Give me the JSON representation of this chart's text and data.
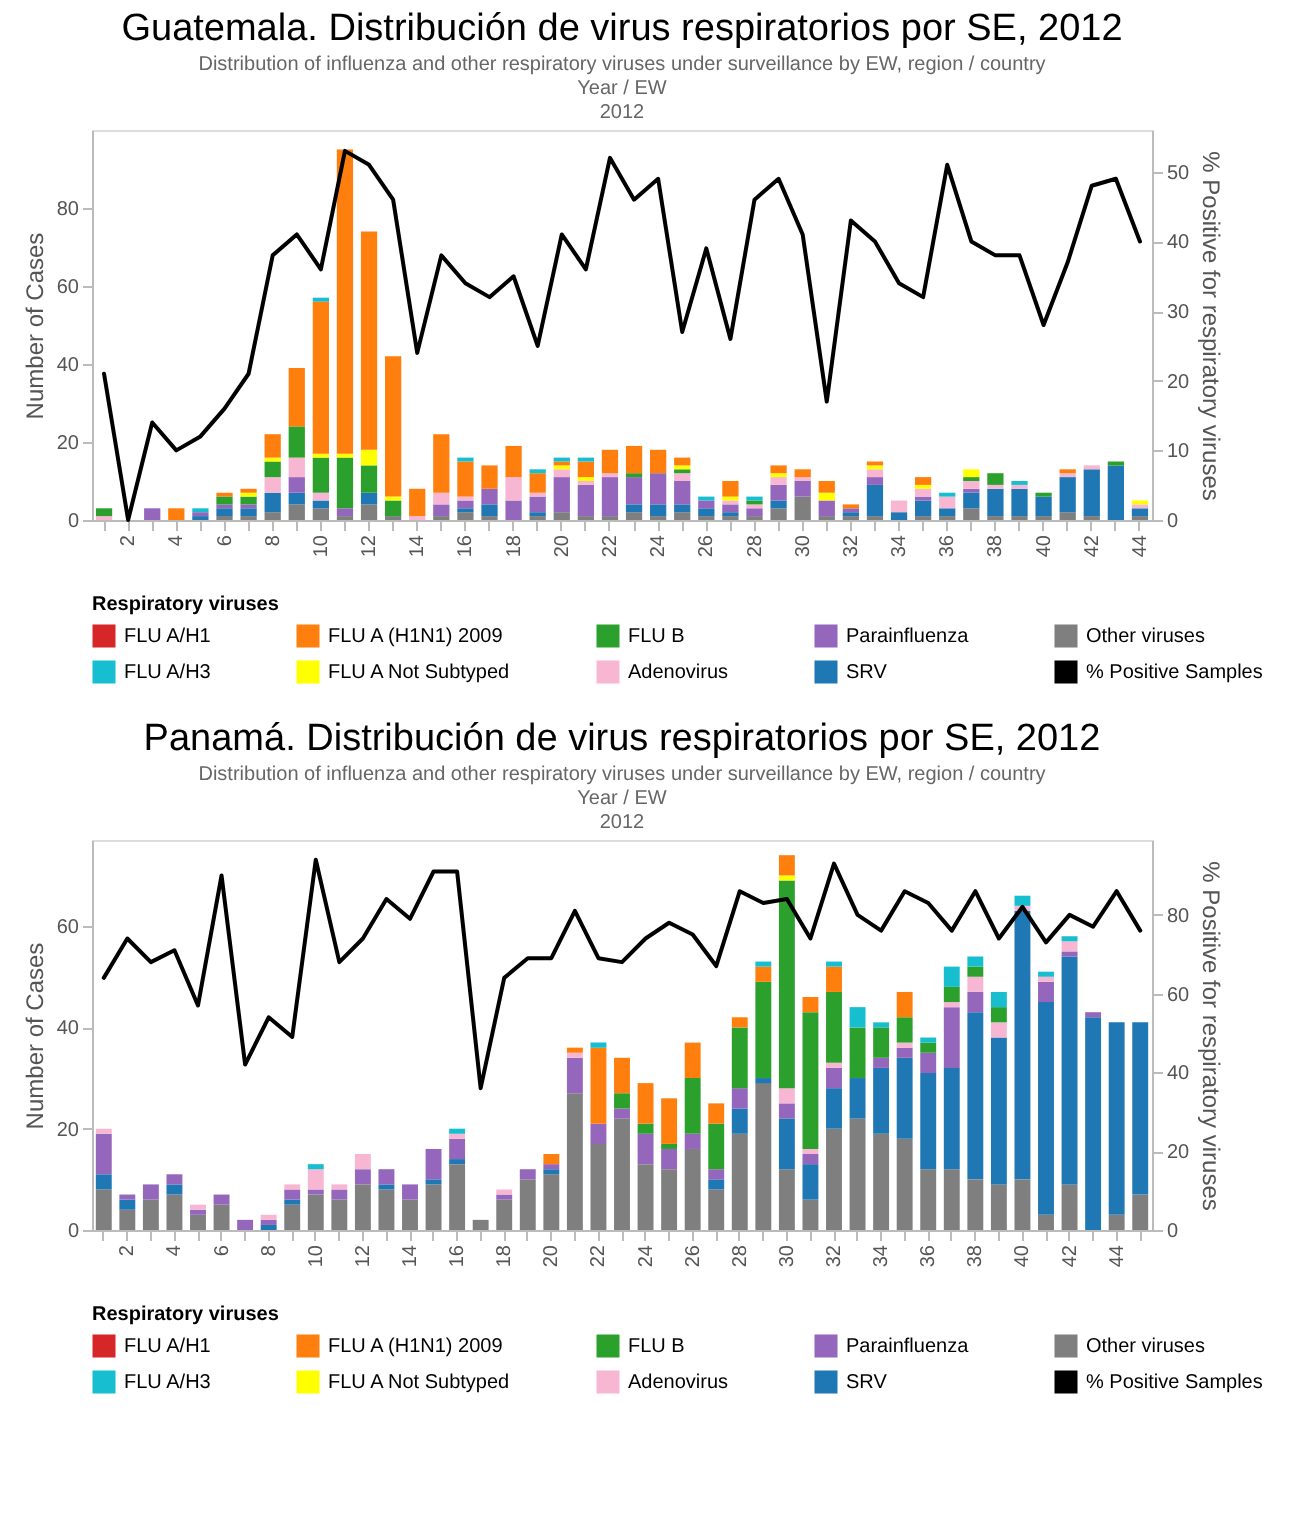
{
  "chart_data": [
    {
      "type": "bar",
      "title": "Guatemala. Distribución de virus respiratorios por SE, 2012",
      "subtitle": "Distribution of influenza and other respiratory viruses under surveillance by EW, region / country",
      "annotations": [
        "Year / EW",
        "2012"
      ],
      "categories": [
        null,
        "2",
        null,
        "4",
        null,
        "6",
        null,
        "8",
        null,
        "10",
        null,
        "12",
        null,
        "14",
        null,
        "16",
        null,
        "18",
        null,
        "20",
        null,
        "22",
        null,
        "24",
        null,
        "26",
        null,
        "28",
        null,
        "30",
        null,
        "32",
        null,
        "34",
        null,
        "36",
        null,
        "38",
        null,
        "40",
        null,
        "42",
        null,
        "44"
      ],
      "ylabel": "Number of Cases",
      "y2label": "% Positive for respiratory viruses",
      "legend_title": "Respiratory viruses",
      "legend": "bottom",
      "stacked": true,
      "ylim": [
        0,
        100
      ],
      "yticks": [
        0,
        20,
        40,
        60,
        80
      ],
      "y2lim": [
        0,
        56
      ],
      "y2ticks": [
        0,
        10,
        20,
        30,
        40,
        50
      ],
      "series": [
        {
          "name": "Other viruses",
          "color": "#7f7f7f",
          "values": [
            0,
            0,
            0,
            0,
            0,
            1,
            1,
            2,
            4,
            3,
            1,
            4,
            1,
            0,
            1,
            2,
            1,
            0,
            1,
            2,
            1,
            1,
            2,
            1,
            2,
            1,
            1,
            1,
            3,
            6,
            1,
            1,
            1,
            0,
            1,
            1,
            3,
            1,
            1,
            1,
            2,
            1,
            0,
            1
          ]
        },
        {
          "name": "SRV",
          "color": "#1f77b4",
          "values": [
            0,
            0,
            0,
            0,
            1,
            2,
            2,
            5,
            3,
            2,
            0,
            3,
            0,
            0,
            0,
            1,
            3,
            0,
            1,
            0,
            0,
            0,
            2,
            3,
            2,
            2,
            1,
            0,
            2,
            0,
            0,
            1,
            8,
            2,
            4,
            2,
            4,
            7,
            7,
            5,
            9,
            12,
            14,
            2
          ]
        },
        {
          "name": "Parainfluenza",
          "color": "#9467bd",
          "values": [
            0,
            0,
            3,
            0,
            1,
            1,
            1,
            0,
            4,
            0,
            2,
            0,
            0,
            0,
            3,
            2,
            4,
            5,
            4,
            9,
            8,
            10,
            7,
            8,
            6,
            2,
            2,
            2,
            4,
            4,
            4,
            1,
            2,
            0,
            1,
            0,
            1,
            0,
            0,
            0,
            0,
            0,
            0,
            0
          ]
        },
        {
          "name": "Adenovirus",
          "color": "#f7b6d2",
          "values": [
            1,
            0,
            0,
            0,
            0,
            0,
            0,
            4,
            5,
            2,
            0,
            0,
            0,
            1,
            3,
            1,
            0,
            6,
            1,
            2,
            1,
            1,
            0,
            0,
            2,
            0,
            1,
            1,
            2,
            1,
            0,
            0,
            2,
            3,
            2,
            3,
            2,
            1,
            1,
            0,
            1,
            1,
            0,
            1
          ]
        },
        {
          "name": "FLU B",
          "color": "#2ca02c",
          "values": [
            2,
            0,
            0,
            0,
            0,
            2,
            2,
            4,
            8,
            9,
            13,
            7,
            4,
            0,
            0,
            0,
            0,
            0,
            0,
            0,
            0,
            0,
            1,
            0,
            1,
            0,
            0,
            1,
            0,
            0,
            0,
            0,
            0,
            0,
            0,
            0,
            1,
            3,
            0,
            1,
            0,
            0,
            1,
            0
          ]
        },
        {
          "name": "FLU A Not Subtyped",
          "color": "#ffff00",
          "values": [
            0,
            0,
            0,
            0,
            0,
            0,
            1,
            1,
            0,
            1,
            1,
            4,
            1,
            0,
            0,
            0,
            0,
            0,
            0,
            1,
            1,
            0,
            0,
            0,
            1,
            0,
            1,
            0,
            1,
            0,
            2,
            0,
            1,
            0,
            1,
            0,
            2,
            0,
            0,
            0,
            0,
            0,
            0,
            1
          ]
        },
        {
          "name": "FLU A (H1N1) 2009",
          "color": "#ff7f0e",
          "values": [
            0,
            0,
            0,
            3,
            0,
            1,
            1,
            6,
            15,
            39,
            78,
            56,
            36,
            7,
            15,
            9,
            6,
            8,
            5,
            1,
            4,
            6,
            7,
            6,
            2,
            0,
            4,
            0,
            2,
            2,
            3,
            1,
            1,
            0,
            2,
            0,
            0,
            0,
            0,
            0,
            1,
            0,
            0,
            0
          ]
        },
        {
          "name": "FLU A/H3",
          "color": "#17becf",
          "values": [
            0,
            0,
            0,
            0,
            1,
            0,
            0,
            0,
            0,
            1,
            0,
            0,
            0,
            0,
            0,
            1,
            0,
            0,
            1,
            1,
            1,
            0,
            0,
            0,
            0,
            1,
            0,
            1,
            0,
            0,
            0,
            0,
            0,
            0,
            0,
            1,
            0,
            0,
            1,
            0,
            0,
            0,
            0,
            0
          ]
        },
        {
          "name": "FLU A/H1",
          "color": "#d62728",
          "values": [
            0,
            0,
            0,
            0,
            0,
            0,
            0,
            0,
            0,
            0,
            0,
            0,
            0,
            0,
            0,
            0,
            0,
            0,
            0,
            0,
            0,
            0,
            0,
            0,
            0,
            0,
            0,
            0,
            0,
            0,
            0,
            0,
            0,
            0,
            0,
            0,
            0,
            0,
            0,
            0,
            0,
            0,
            0,
            0
          ]
        },
        {
          "name": "% Positive Samples",
          "color": "#000000",
          "type": "line",
          "axis": "y2",
          "values": [
            21,
            0,
            14,
            10,
            12,
            16,
            21,
            38,
            41,
            36,
            53,
            51,
            46,
            24,
            38,
            34,
            32,
            35,
            25,
            41,
            36,
            52,
            46,
            49,
            27,
            39,
            26,
            46,
            49,
            41,
            17,
            43,
            40,
            34,
            32,
            51,
            40,
            38,
            38,
            28,
            37,
            48,
            49,
            40
          ]
        }
      ]
    },
    {
      "type": "bar",
      "title": "Panamá. Distribución de virus respiratorios por SE, 2012",
      "subtitle": "Distribution of influenza and other respiratory viruses under surveillance by EW, region / country",
      "annotations": [
        "Year / EW",
        "2012"
      ],
      "categories": [
        null,
        "2",
        null,
        "4",
        null,
        "6",
        null,
        "8",
        null,
        "10",
        null,
        "12",
        null,
        "14",
        null,
        "16",
        null,
        "18",
        null,
        "20",
        null,
        "22",
        null,
        "24",
        null,
        "26",
        null,
        "28",
        null,
        "30",
        null,
        "32",
        null,
        "34",
        null,
        "36",
        null,
        "38",
        null,
        "40",
        null,
        "42",
        null,
        "44",
        null
      ],
      "ylabel": "Number of Cases",
      "y2label": "% Positive for respiratory viruses",
      "legend_title": "Respiratory viruses",
      "legend": "bottom",
      "stacked": true,
      "ylim": [
        0,
        77
      ],
      "yticks": [
        0,
        20,
        40,
        60
      ],
      "y2lim": [
        0,
        99
      ],
      "y2ticks": [
        0,
        20,
        40,
        60,
        80
      ],
      "series": [
        {
          "name": "Other viruses",
          "color": "#7f7f7f",
          "values": [
            8,
            4,
            6,
            7,
            3,
            5,
            0,
            0,
            5,
            7,
            6,
            9,
            8,
            6,
            9,
            13,
            2,
            6,
            10,
            11,
            27,
            17,
            22,
            13,
            12,
            16,
            8,
            19,
            29,
            12,
            6,
            20,
            22,
            19,
            18,
            12,
            12,
            10,
            9,
            10,
            3,
            9,
            0,
            3,
            7
          ]
        },
        {
          "name": "SRV",
          "color": "#1f77b4",
          "values": [
            3,
            2,
            0,
            2,
            0,
            0,
            0,
            1,
            1,
            0,
            0,
            0,
            1,
            0,
            1,
            1,
            0,
            0,
            0,
            1,
            0,
            0,
            0,
            0,
            0,
            0,
            2,
            5,
            1,
            10,
            7,
            8,
            8,
            13,
            16,
            19,
            20,
            33,
            29,
            53,
            42,
            45,
            42,
            38,
            34
          ]
        },
        {
          "name": "Parainfluenza",
          "color": "#9467bd",
          "values": [
            8,
            1,
            3,
            2,
            1,
            2,
            2,
            1,
            2,
            1,
            2,
            3,
            3,
            3,
            6,
            4,
            0,
            1,
            2,
            1,
            7,
            4,
            2,
            6,
            4,
            3,
            2,
            4,
            0,
            3,
            2,
            4,
            0,
            2,
            2,
            4,
            12,
            4,
            0,
            0,
            4,
            1,
            1,
            0,
            0
          ]
        },
        {
          "name": "Adenovirus",
          "color": "#f7b6d2",
          "values": [
            1,
            0,
            0,
            0,
            1,
            0,
            0,
            1,
            1,
            4,
            1,
            3,
            0,
            0,
            0,
            1,
            0,
            1,
            0,
            0,
            1,
            0,
            0,
            0,
            0,
            0,
            0,
            0,
            0,
            3,
            1,
            1,
            0,
            0,
            1,
            0,
            1,
            3,
            3,
            1,
            1,
            2,
            0,
            0,
            0
          ]
        },
        {
          "name": "FLU B",
          "color": "#2ca02c",
          "values": [
            0,
            0,
            0,
            0,
            0,
            0,
            0,
            0,
            0,
            0,
            0,
            0,
            0,
            0,
            0,
            0,
            0,
            0,
            0,
            0,
            0,
            0,
            3,
            2,
            1,
            11,
            9,
            12,
            19,
            41,
            27,
            14,
            10,
            6,
            5,
            2,
            3,
            2,
            3,
            0,
            0,
            0,
            0,
            0,
            0
          ]
        },
        {
          "name": "FLU A Not Subtyped",
          "color": "#ffff00",
          "values": [
            0,
            0,
            0,
            0,
            0,
            0,
            0,
            0,
            0,
            0,
            0,
            0,
            0,
            0,
            0,
            0,
            0,
            0,
            0,
            0,
            0,
            0,
            0,
            0,
            0,
            0,
            0,
            0,
            0,
            1,
            0,
            0,
            0,
            0,
            0,
            0,
            0,
            0,
            0,
            0,
            0,
            0,
            0,
            0,
            0
          ]
        },
        {
          "name": "FLU A (H1N1) 2009",
          "color": "#ff7f0e",
          "values": [
            0,
            0,
            0,
            0,
            0,
            0,
            0,
            0,
            0,
            0,
            0,
            0,
            0,
            0,
            0,
            0,
            0,
            0,
            0,
            2,
            1,
            15,
            7,
            8,
            9,
            7,
            4,
            2,
            3,
            4,
            3,
            5,
            0,
            0,
            5,
            0,
            0,
            0,
            0,
            0,
            0,
            0,
            0,
            0,
            0
          ]
        },
        {
          "name": "FLU A/H3",
          "color": "#17becf",
          "values": [
            0,
            0,
            0,
            0,
            0,
            0,
            0,
            0,
            0,
            1,
            0,
            0,
            0,
            0,
            0,
            1,
            0,
            0,
            0,
            0,
            0,
            1,
            0,
            0,
            0,
            0,
            0,
            0,
            1,
            0,
            0,
            1,
            4,
            1,
            0,
            1,
            4,
            2,
            3,
            2,
            1,
            1,
            0,
            0,
            0
          ]
        },
        {
          "name": "FLU A/H1",
          "color": "#d62728",
          "values": [
            0,
            0,
            0,
            0,
            0,
            0,
            0,
            0,
            0,
            0,
            0,
            0,
            0,
            0,
            0,
            0,
            0,
            0,
            0,
            0,
            0,
            0,
            0,
            0,
            0,
            0,
            0,
            0,
            0,
            0,
            0,
            0,
            0,
            0,
            0,
            0,
            0,
            0,
            0,
            0,
            0,
            0,
            0,
            0,
            0
          ]
        },
        {
          "name": "% Positive Samples",
          "color": "#000000",
          "type": "line",
          "axis": "y2",
          "values": [
            64,
            74,
            68,
            71,
            57,
            90,
            42,
            54,
            49,
            94,
            68,
            74,
            84,
            79,
            91,
            91,
            36,
            64,
            69,
            69,
            81,
            69,
            68,
            74,
            78,
            75,
            67,
            86,
            83,
            84,
            74,
            93,
            80,
            76,
            86,
            83,
            76,
            86,
            74,
            82,
            73,
            80,
            77,
            86,
            76
          ]
        }
      ]
    }
  ]
}
